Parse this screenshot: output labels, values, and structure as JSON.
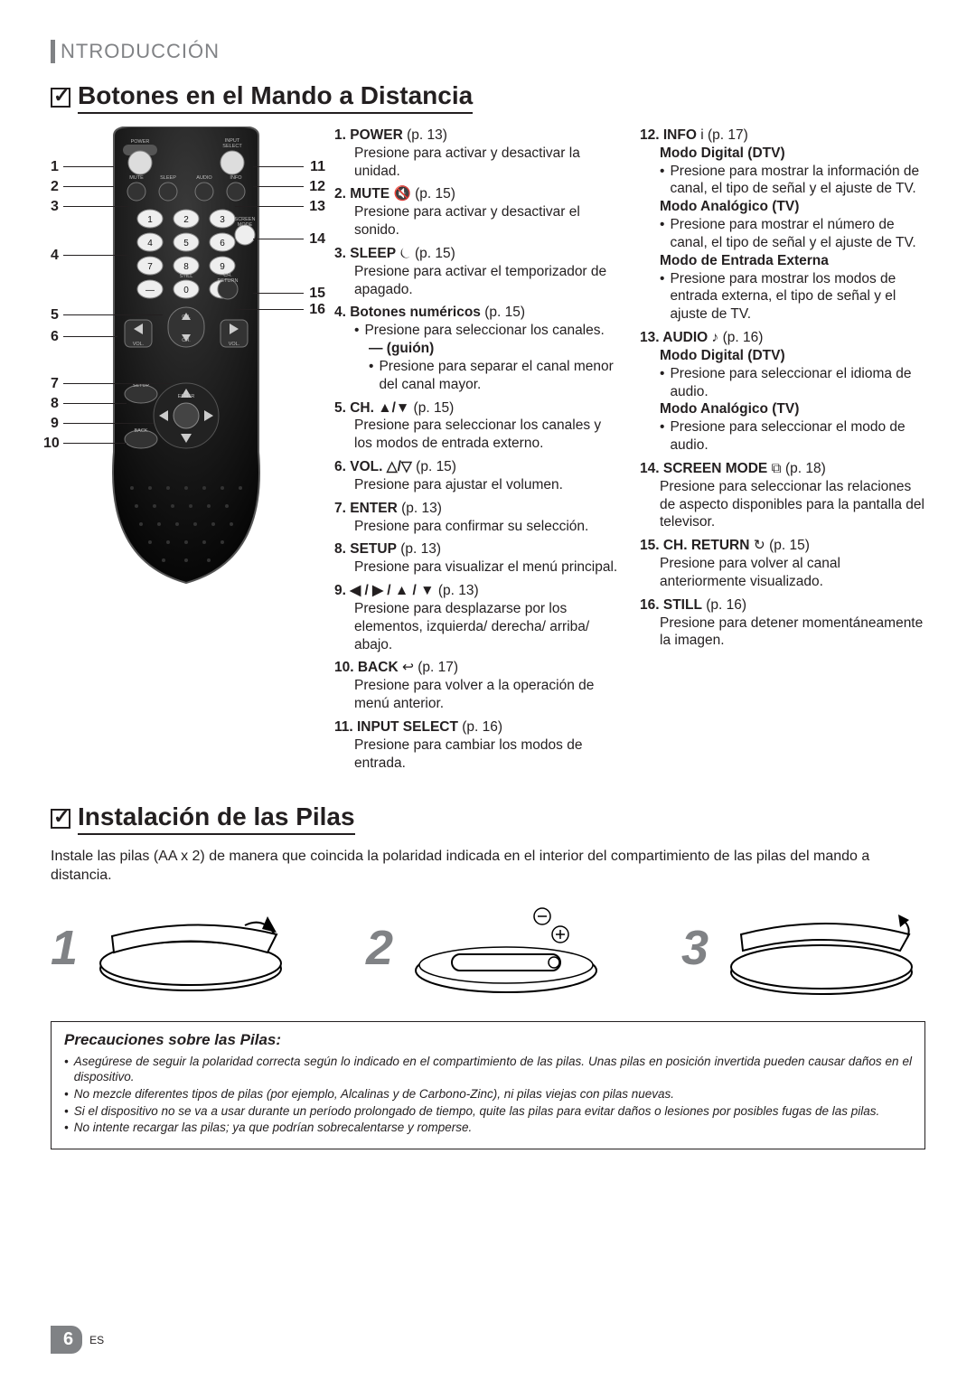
{
  "section_tab": "NTRODUCCIÓN",
  "heading1": "Botones en el Mando a Distancia",
  "heading2": "Instalación de las Pilas",
  "install_intro": "Instale las pilas (AA x 2) de manera que coincida la polaridad indicada en el interior del compartimiento de las pilas del mando a distancia.",
  "steps": [
    "1",
    "2",
    "3"
  ],
  "remote_labels_left": [
    "1",
    "2",
    "3",
    "4",
    "5",
    "6",
    "7",
    "8",
    "9",
    "10"
  ],
  "remote_labels_right": [
    "11",
    "12",
    "13",
    "14",
    "15",
    "16"
  ],
  "col1": [
    {
      "num": "1.",
      "name": "POWER",
      "page": "(p. 13)",
      "desc": "Presione para activar y desactivar la unidad."
    },
    {
      "num": "2.",
      "name": "MUTE",
      "sym": " 🔇",
      "page": "(p. 15)",
      "desc": "Presione para activar y desactivar el sonido."
    },
    {
      "num": "3.",
      "name": "SLEEP",
      "sym": " ⏾",
      "page": "(p. 15)",
      "desc": "Presione para activar el temporizador de apagado."
    },
    {
      "num": "4.",
      "name": "Botones numéricos",
      "page": "(p. 15)",
      "bullets": [
        "Presione para seleccionar los canales."
      ],
      "dash": "— (guión)",
      "dash_bullets": [
        "Presione para separar el canal menor del canal mayor."
      ]
    },
    {
      "num": "5.",
      "name": "CH. ▲/▼",
      "page": "(p. 15)",
      "desc": "Presione para seleccionar los canales y los modos de entrada externo."
    },
    {
      "num": "6.",
      "name": "VOL. △/▽",
      "page": "(p. 15)",
      "desc": "Presione para ajustar el volumen."
    },
    {
      "num": "7.",
      "name": "ENTER",
      "page": "(p. 13)",
      "desc": "Presione para confirmar su selección."
    },
    {
      "num": "8.",
      "name": "SETUP",
      "page": "(p. 13)",
      "desc": "Presione para visualizar el menú principal."
    },
    {
      "num": "9.",
      "name": "◀ / ▶ / ▲ / ▼",
      "page": "(p. 13)",
      "desc": "Presione para desplazarse por los elementos, izquierda/ derecha/ arriba/ abajo."
    },
    {
      "num": "10.",
      "name": "BACK",
      "sym": " ↩",
      "page": "(p. 17)",
      "desc": "Presione para volver a la operación de menú anterior."
    },
    {
      "num": "11.",
      "name": "INPUT SELECT",
      "page": "(p. 16)",
      "desc": "Presione para cambiar los modos de entrada."
    }
  ],
  "col2": [
    {
      "num": "12.",
      "name": "INFO",
      "sym": " i",
      "page": "(p. 17)",
      "modes": [
        {
          "title": "Modo Digital (DTV)",
          "bullets": [
            "Presione para mostrar la información de canal, el tipo de señal y el ajuste de TV."
          ]
        },
        {
          "title": "Modo Analógico (TV)",
          "bullets": [
            "Presione para mostrar el número de canal, el tipo de señal y el ajuste de TV."
          ]
        },
        {
          "title": "Modo de Entrada Externa",
          "bullets": [
            "Presione para mostrar los modos de entrada externa, el tipo de señal y el ajuste de TV."
          ]
        }
      ]
    },
    {
      "num": "13.",
      "name": "AUDIO",
      "sym": " ♪",
      "page": "(p. 16)",
      "modes": [
        {
          "title": "Modo Digital (DTV)",
          "bullets": [
            "Presione para seleccionar el idioma de audio."
          ]
        },
        {
          "title": "Modo Analógico (TV)",
          "bullets": [
            "Presione para seleccionar el modo de audio."
          ]
        }
      ]
    },
    {
      "num": "14.",
      "name": "SCREEN MODE",
      "sym": " ⧉",
      "page": "(p. 18)",
      "desc": "Presione para seleccionar las relaciones de aspecto disponibles para la pantalla del televisor."
    },
    {
      "num": "15.",
      "name": "CH. RETURN",
      "sym": " ↻",
      "page": "(p. 15)",
      "desc": "Presione para volver al canal anteriormente visualizado."
    },
    {
      "num": "16.",
      "name": "STILL",
      "page": "(p. 16)",
      "desc": "Presione para detener momentáneamente la imagen."
    }
  ],
  "precautions_title": "Precauciones sobre las Pilas:",
  "precautions": [
    "Asegúrese de seguir la polaridad correcta según lo indicado en el compartimiento de las pilas. Unas pilas en posición invertida pueden causar daños en el dispositivo.",
    "No mezcle diferentes tipos de pilas (por ejemplo, Alcalinas y de Carbono-Zinc), ni pilas viejas con pilas nuevas.",
    "Si el dispositivo no se va a usar durante un período prolongado de tiempo, quite las pilas para evitar daños o lesiones por posibles fugas de las pilas.",
    "No intente recargar las pilas; ya que podrían sobrecalentarse y romperse."
  ],
  "page_number": "6",
  "page_lang": "ES",
  "remote_button_labels": {
    "power": "POWER",
    "input_select": "INPUT\nSELECT",
    "mute": "MUTE",
    "sleep": "SLEEP",
    "audio": "AUDIO",
    "info": "INFO",
    "screen_mode": "SCREEN\nMODE",
    "still": "STILL",
    "ch_return": "CH.\nRETURN",
    "ch": "CH.",
    "vol": "VOL.",
    "setup": "SETUP",
    "enter": "ENTER",
    "back": "BACK"
  },
  "colors": {
    "gray": "#808285",
    "black": "#231f20",
    "remote_body": "#1a1a1a",
    "remote_body2": "#000000"
  }
}
